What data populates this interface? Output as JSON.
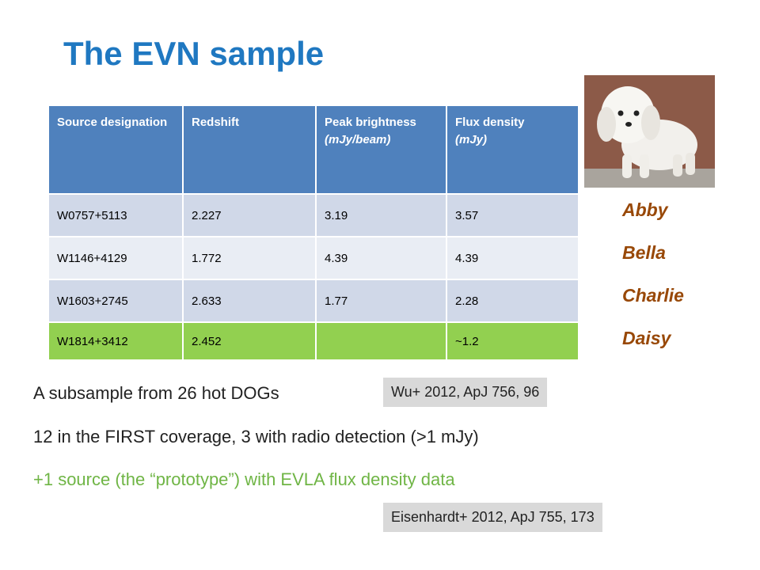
{
  "title": "The EVN sample",
  "table": {
    "header": [
      {
        "label": "Source designation"
      },
      {
        "label": "Redshift"
      },
      {
        "label": "Peak brightness",
        "unit": "(mJy/beam)"
      },
      {
        "label": "Flux density",
        "unit": "(mJy)"
      }
    ],
    "rows": [
      [
        "W0757+5113",
        "2.227",
        "3.19",
        "3.57"
      ],
      [
        "W1146+4129",
        "1.772",
        "4.39",
        "4.39"
      ],
      [
        "W1603+2745",
        "2.633",
        "1.77",
        "2.28"
      ],
      [
        "W1814+3412",
        "2.452",
        null,
        "~1.2"
      ]
    ]
  },
  "names": [
    "Abby",
    "Bella",
    "Charlie",
    "Daisy"
  ],
  "bullets": [
    "A subsample from 26 hot DOGs",
    "12 in the FIRST coverage, 3 with radio detection (>1 mJy)",
    "+1 source (the “prototype”) with EVLA flux density data"
  ],
  "citations": [
    "Wu+ 2012, ApJ 756, 96",
    "Eisenhardt+ 2012, ApJ 755, 173"
  ]
}
